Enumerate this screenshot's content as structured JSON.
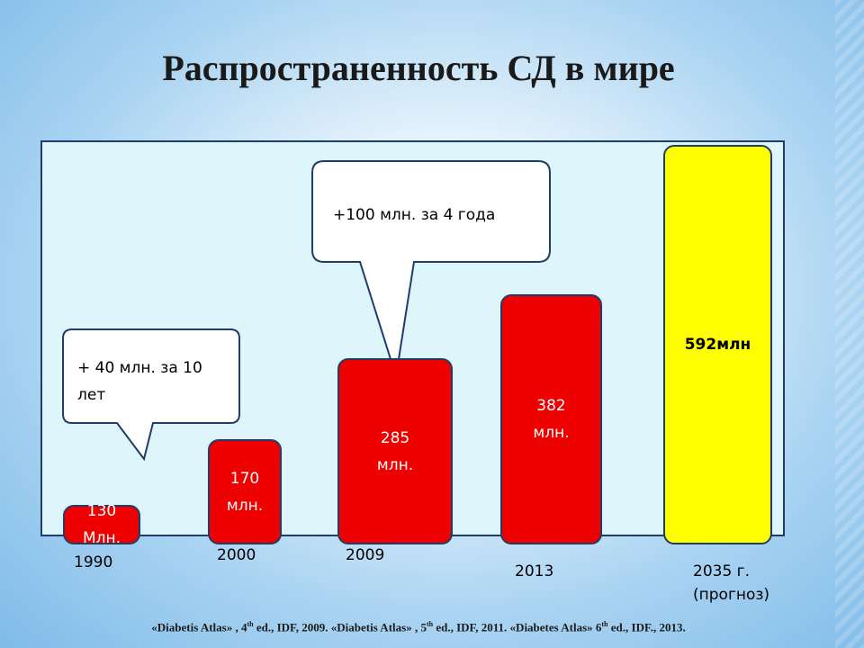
{
  "title": "Распространенность СД в мире",
  "chart_data": {
    "type": "bar",
    "categories": [
      "1990",
      "2000",
      "2009",
      "2013",
      "2035 г.\n(прогноз)"
    ],
    "values": [
      130,
      170,
      285,
      382,
      592
    ],
    "value_labels": [
      "130\nМлн.",
      "170\nмлн.",
      "285\nмлн.",
      "382\nмлн.",
      "592млн"
    ],
    "bar_colors": [
      "#ee0000",
      "#ee0000",
      "#ee0000",
      "#ee0000",
      "#ffff00"
    ],
    "annotations": [
      {
        "text": "+ 40 млн. за 10\nлет"
      },
      {
        "text": "+100 млн. за 4 года"
      }
    ],
    "title": "Распространенность СД в мире",
    "xlabel": "",
    "ylabel": "",
    "grid": false,
    "legend": "none"
  },
  "source": {
    "part1": "«Diabetis Atlas» , 4",
    "sup1": "th",
    "part2": " ed., IDF, 2009. «Diabetis Atlas» , 5",
    "sup2": "th",
    "part3": " ed., IDF, 2011. «Diabetes Atlas» 6",
    "sup3": "th",
    "part4": " ed., IDF., 2013."
  }
}
